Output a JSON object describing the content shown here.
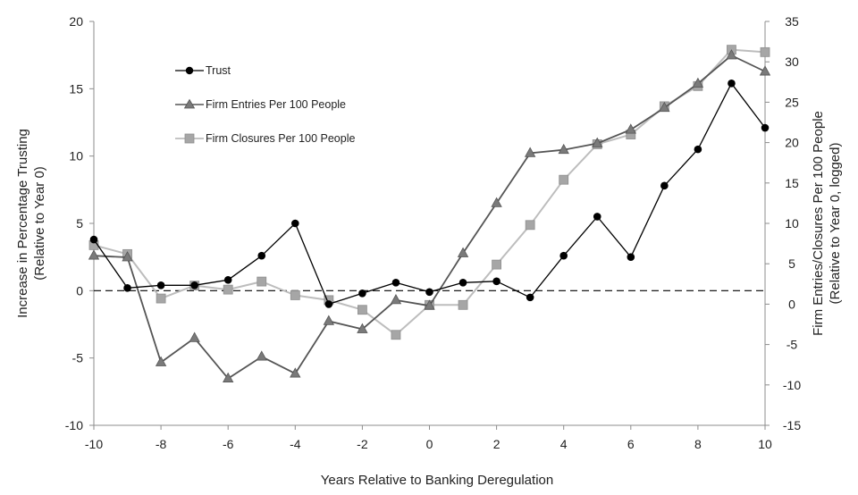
{
  "chart_data": {
    "type": "line",
    "x": [
      -10,
      -9,
      -8,
      -7,
      -6,
      -5,
      -4,
      -3,
      -2,
      -1,
      0,
      1,
      2,
      3,
      4,
      5,
      6,
      7,
      8,
      9,
      10
    ],
    "xlabel": "Years Relative to Banking Deregulation",
    "xlim": [
      -10,
      10
    ],
    "x_ticks": [
      "-10",
      "-8",
      "-6",
      "-4",
      "-2",
      "0",
      "2",
      "4",
      "6",
      "8",
      "10"
    ],
    "ylabel_left": [
      "Increase in Percentage Trusting",
      "(Relative to Year 0)"
    ],
    "ylim_left": [
      -10,
      20
    ],
    "y_ticks_left": [
      "20",
      "15",
      "10",
      "5",
      "0",
      "-5",
      "-10"
    ],
    "ylabel_right": [
      "Firm Entries/Closures Per 100 People",
      "(Relative to Year 0, logged)"
    ],
    "ylim_right": [
      -15,
      35
    ],
    "y_ticks_right": [
      "35",
      "30",
      "25",
      "20",
      "15",
      "10",
      "5",
      "0",
      "-5",
      "-10",
      "-15"
    ],
    "reference_line": {
      "axis": "left",
      "value": 0,
      "style": "dashed"
    },
    "series": [
      {
        "name": "Trust",
        "axis": "left",
        "marker": "circle",
        "color": "#000000",
        "values": [
          3.8,
          0.2,
          0.4,
          0.4,
          0.8,
          2.6,
          5.0,
          -1.0,
          -0.2,
          0.6,
          -0.1,
          0.6,
          0.7,
          -0.5,
          2.6,
          5.5,
          2.5,
          7.8,
          10.5,
          15.4,
          12.1
        ]
      },
      {
        "name": "Firm Entries Per 100 People",
        "axis": "right",
        "marker": "triangle",
        "color": "#555555",
        "markerColor": "#7a7a7a",
        "values": [
          6.0,
          5.8,
          -7.2,
          -4.2,
          -9.2,
          -6.5,
          -8.6,
          -2.1,
          -3.1,
          0.5,
          -0.2,
          6.3,
          12.5,
          18.7,
          19.1,
          19.9,
          21.6,
          24.3,
          27.3,
          30.8,
          28.8
        ]
      },
      {
        "name": "Firm Closures Per 100 People",
        "axis": "right",
        "marker": "square",
        "color": "#bdbdbd",
        "markerColor": "#a6a6a6",
        "values": [
          7.3,
          6.2,
          0.7,
          2.3,
          1.8,
          2.8,
          1.1,
          0.5,
          -0.7,
          -3.8,
          -0.1,
          -0.1,
          4.9,
          9.8,
          15.4,
          19.8,
          21.0,
          24.5,
          27.0,
          31.5,
          31.2
        ]
      }
    ]
  }
}
